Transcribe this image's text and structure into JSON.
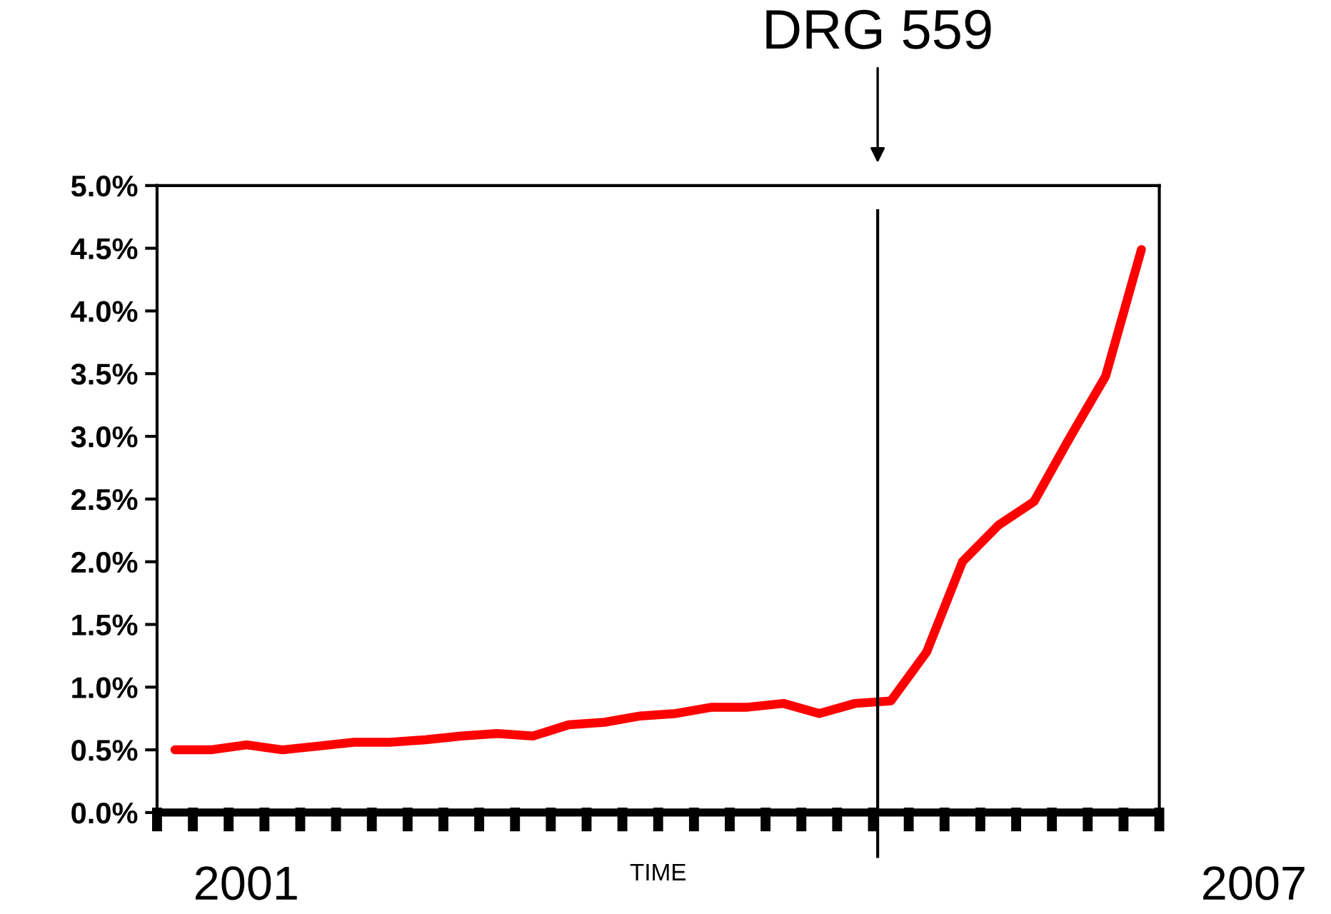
{
  "chart_data": {
    "type": "line",
    "xlabel": "TIME",
    "categories": [
      null,
      null,
      null,
      null,
      null,
      null,
      null,
      null,
      null,
      null,
      null,
      null,
      null,
      null,
      null,
      null,
      null,
      null,
      null,
      null,
      null,
      null,
      null,
      null,
      null,
      null,
      null,
      null
    ],
    "series": [
      {
        "color": "#ff0000",
        "values": [
          0.5,
          0.5,
          0.54,
          0.5,
          0.53,
          0.56,
          0.56,
          0.58,
          0.61,
          0.63,
          0.61,
          0.7,
          0.72,
          0.77,
          0.79,
          0.84,
          0.84,
          0.87,
          0.79,
          0.87,
          0.89,
          1.28,
          2.0,
          2.29,
          2.48,
          2.99,
          3.48,
          4.49
        ]
      }
    ],
    "ylim": [
      0,
      5
    ],
    "yticks": [
      {
        "value": 0,
        "label": "0.0%"
      },
      {
        "value": 0.5,
        "label": "0.5%"
      },
      {
        "value": 1,
        "label": "1.0%"
      },
      {
        "value": 1.5,
        "label": "1.5%"
      },
      {
        "value": 2,
        "label": "2.0%"
      },
      {
        "value": 2.5,
        "label": "2.5%"
      },
      {
        "value": 3,
        "label": "3.0%"
      },
      {
        "value": 3.5,
        "label": "3.5%"
      },
      {
        "value": 4,
        "label": "4.0%"
      },
      {
        "value": 4.5,
        "label": "4.5%"
      },
      {
        "value": 5,
        "label": "5.0%"
      }
    ],
    "annotations": [
      "DRG 559",
      "2001",
      "2007"
    ],
    "grid": false,
    "legend": false,
    "marker": "none",
    "line_style": "solid"
  }
}
